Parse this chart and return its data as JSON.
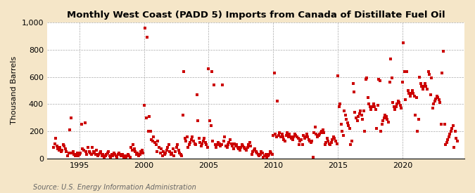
{
  "title": "Monthly West Coast (PADD 5) Imports from Canada of Distillate Fuel Oil",
  "ylabel": "Thousand Barrels",
  "source_text": "Source: U.S. Energy Information Administration",
  "figure_bg": "#f5e6c8",
  "plot_bg": "#ffffff",
  "marker_color": "#cc0000",
  "xlim_start": 1992.5,
  "xlim_end": 2024.8,
  "ylim": [
    0,
    1000
  ],
  "yticks": [
    0,
    200,
    400,
    600,
    800,
    1000
  ],
  "xticks": [
    1995,
    2000,
    2005,
    2010,
    2015,
    2020
  ],
  "data_points": [
    [
      1993.0,
      80
    ],
    [
      1993.08,
      110
    ],
    [
      1993.17,
      150
    ],
    [
      1993.25,
      90
    ],
    [
      1993.33,
      70
    ],
    [
      1993.42,
      60
    ],
    [
      1993.5,
      80
    ],
    [
      1993.58,
      50
    ],
    [
      1993.67,
      60
    ],
    [
      1993.75,
      100
    ],
    [
      1993.83,
      90
    ],
    [
      1993.92,
      70
    ],
    [
      1994.0,
      50
    ],
    [
      1994.08,
      20
    ],
    [
      1994.17,
      40
    ],
    [
      1994.25,
      210
    ],
    [
      1994.33,
      300
    ],
    [
      1994.42,
      40
    ],
    [
      1994.5,
      50
    ],
    [
      1994.58,
      30
    ],
    [
      1994.67,
      20
    ],
    [
      1994.75,
      30
    ],
    [
      1994.83,
      40
    ],
    [
      1994.92,
      20
    ],
    [
      1995.0,
      30
    ],
    [
      1995.08,
      40
    ],
    [
      1995.17,
      250
    ],
    [
      1995.25,
      70
    ],
    [
      1995.33,
      60
    ],
    [
      1995.42,
      260
    ],
    [
      1995.5,
      50
    ],
    [
      1995.58,
      30
    ],
    [
      1995.67,
      80
    ],
    [
      1995.75,
      50
    ],
    [
      1995.83,
      40
    ],
    [
      1995.92,
      30
    ],
    [
      1996.0,
      80
    ],
    [
      1996.08,
      50
    ],
    [
      1996.17,
      40
    ],
    [
      1996.25,
      30
    ],
    [
      1996.33,
      60
    ],
    [
      1996.42,
      20
    ],
    [
      1996.5,
      30
    ],
    [
      1996.58,
      40
    ],
    [
      1996.67,
      50
    ],
    [
      1996.75,
      20
    ],
    [
      1996.83,
      30
    ],
    [
      1996.92,
      10
    ],
    [
      1997.0,
      20
    ],
    [
      1997.08,
      30
    ],
    [
      1997.17,
      40
    ],
    [
      1997.25,
      50
    ],
    [
      1997.33,
      20
    ],
    [
      1997.42,
      10
    ],
    [
      1997.5,
      30
    ],
    [
      1997.58,
      20
    ],
    [
      1997.67,
      40
    ],
    [
      1997.75,
      30
    ],
    [
      1997.83,
      20
    ],
    [
      1997.92,
      10
    ],
    [
      1998.0,
      30
    ],
    [
      1998.08,
      40
    ],
    [
      1998.17,
      30
    ],
    [
      1998.25,
      20
    ],
    [
      1998.33,
      30
    ],
    [
      1998.42,
      10
    ],
    [
      1998.5,
      20
    ],
    [
      1998.58,
      10
    ],
    [
      1998.67,
      20
    ],
    [
      1998.75,
      30
    ],
    [
      1998.83,
      20
    ],
    [
      1998.92,
      10
    ],
    [
      1999.0,
      80
    ],
    [
      1999.08,
      60
    ],
    [
      1999.17,
      100
    ],
    [
      1999.25,
      70
    ],
    [
      1999.33,
      50
    ],
    [
      1999.42,
      30
    ],
    [
      1999.5,
      40
    ],
    [
      1999.58,
      20
    ],
    [
      1999.67,
      30
    ],
    [
      1999.75,
      50
    ],
    [
      1999.83,
      60
    ],
    [
      1999.92,
      40
    ],
    [
      2000.0,
      390
    ],
    [
      2000.08,
      960
    ],
    [
      2000.17,
      300
    ],
    [
      2000.25,
      890
    ],
    [
      2000.33,
      200
    ],
    [
      2000.42,
      310
    ],
    [
      2000.5,
      200
    ],
    [
      2000.58,
      140
    ],
    [
      2000.67,
      130
    ],
    [
      2000.75,
      160
    ],
    [
      2000.83,
      120
    ],
    [
      2000.92,
      100
    ],
    [
      2001.0,
      50
    ],
    [
      2001.08,
      130
    ],
    [
      2001.17,
      80
    ],
    [
      2001.25,
      40
    ],
    [
      2001.33,
      70
    ],
    [
      2001.42,
      20
    ],
    [
      2001.5,
      50
    ],
    [
      2001.58,
      30
    ],
    [
      2001.67,
      40
    ],
    [
      2001.75,
      60
    ],
    [
      2001.83,
      80
    ],
    [
      2001.92,
      100
    ],
    [
      2002.0,
      50
    ],
    [
      2002.08,
      30
    ],
    [
      2002.17,
      40
    ],
    [
      2002.25,
      70
    ],
    [
      2002.33,
      20
    ],
    [
      2002.42,
      50
    ],
    [
      2002.5,
      80
    ],
    [
      2002.58,
      100
    ],
    [
      2002.67,
      60
    ],
    [
      2002.75,
      40
    ],
    [
      2002.83,
      30
    ],
    [
      2002.92,
      20
    ],
    [
      2003.0,
      320
    ],
    [
      2003.08,
      640
    ],
    [
      2003.17,
      150
    ],
    [
      2003.25,
      130
    ],
    [
      2003.33,
      160
    ],
    [
      2003.42,
      80
    ],
    [
      2003.5,
      100
    ],
    [
      2003.58,
      120
    ],
    [
      2003.67,
      140
    ],
    [
      2003.75,
      160
    ],
    [
      2003.83,
      130
    ],
    [
      2003.92,
      110
    ],
    [
      2004.0,
      100
    ],
    [
      2004.08,
      470
    ],
    [
      2004.17,
      280
    ],
    [
      2004.25,
      150
    ],
    [
      2004.33,
      120
    ],
    [
      2004.42,
      90
    ],
    [
      2004.5,
      110
    ],
    [
      2004.58,
      130
    ],
    [
      2004.67,
      150
    ],
    [
      2004.75,
      120
    ],
    [
      2004.83,
      100
    ],
    [
      2004.92,
      80
    ],
    [
      2005.0,
      660
    ],
    [
      2005.08,
      280
    ],
    [
      2005.17,
      240
    ],
    [
      2005.25,
      640
    ],
    [
      2005.33,
      130
    ],
    [
      2005.42,
      540
    ],
    [
      2005.5,
      100
    ],
    [
      2005.58,
      80
    ],
    [
      2005.67,
      100
    ],
    [
      2005.75,
      120
    ],
    [
      2005.83,
      110
    ],
    [
      2005.92,
      90
    ],
    [
      2006.0,
      100
    ],
    [
      2006.08,
      540
    ],
    [
      2006.17,
      130
    ],
    [
      2006.25,
      160
    ],
    [
      2006.33,
      90
    ],
    [
      2006.42,
      80
    ],
    [
      2006.5,
      100
    ],
    [
      2006.58,
      120
    ],
    [
      2006.67,
      140
    ],
    [
      2006.75,
      110
    ],
    [
      2006.83,
      90
    ],
    [
      2006.92,
      70
    ],
    [
      2007.0,
      110
    ],
    [
      2007.08,
      90
    ],
    [
      2007.17,
      100
    ],
    [
      2007.25,
      80
    ],
    [
      2007.33,
      70
    ],
    [
      2007.42,
      60
    ],
    [
      2007.5,
      80
    ],
    [
      2007.58,
      100
    ],
    [
      2007.67,
      90
    ],
    [
      2007.75,
      80
    ],
    [
      2007.83,
      70
    ],
    [
      2007.92,
      60
    ],
    [
      2008.0,
      80
    ],
    [
      2008.08,
      100
    ],
    [
      2008.17,
      120
    ],
    [
      2008.25,
      90
    ],
    [
      2008.33,
      30
    ],
    [
      2008.42,
      50
    ],
    [
      2008.5,
      60
    ],
    [
      2008.58,
      70
    ],
    [
      2008.67,
      50
    ],
    [
      2008.75,
      40
    ],
    [
      2008.83,
      30
    ],
    [
      2008.92,
      20
    ],
    [
      2009.0,
      30
    ],
    [
      2009.08,
      50
    ],
    [
      2009.17,
      40
    ],
    [
      2009.25,
      10
    ],
    [
      2009.33,
      20
    ],
    [
      2009.42,
      30
    ],
    [
      2009.5,
      10
    ],
    [
      2009.58,
      20
    ],
    [
      2009.67,
      30
    ],
    [
      2009.75,
      50
    ],
    [
      2009.83,
      40
    ],
    [
      2009.92,
      30
    ],
    [
      2010.0,
      170
    ],
    [
      2010.08,
      630
    ],
    [
      2010.17,
      180
    ],
    [
      2010.25,
      160
    ],
    [
      2010.33,
      420
    ],
    [
      2010.42,
      170
    ],
    [
      2010.5,
      190
    ],
    [
      2010.58,
      160
    ],
    [
      2010.67,
      180
    ],
    [
      2010.75,
      160
    ],
    [
      2010.83,
      140
    ],
    [
      2010.92,
      130
    ],
    [
      2011.0,
      170
    ],
    [
      2011.08,
      190
    ],
    [
      2011.17,
      160
    ],
    [
      2011.25,
      180
    ],
    [
      2011.33,
      160
    ],
    [
      2011.42,
      150
    ],
    [
      2011.5,
      140
    ],
    [
      2011.58,
      160
    ],
    [
      2011.67,
      180
    ],
    [
      2011.75,
      170
    ],
    [
      2011.83,
      160
    ],
    [
      2011.92,
      150
    ],
    [
      2012.0,
      100
    ],
    [
      2012.08,
      130
    ],
    [
      2012.17,
      140
    ],
    [
      2012.25,
      100
    ],
    [
      2012.33,
      170
    ],
    [
      2012.42,
      150
    ],
    [
      2012.5,
      160
    ],
    [
      2012.58,
      180
    ],
    [
      2012.67,
      160
    ],
    [
      2012.75,
      140
    ],
    [
      2012.83,
      130
    ],
    [
      2012.92,
      120
    ],
    [
      2013.0,
      130
    ],
    [
      2013.08,
      10
    ],
    [
      2013.17,
      190
    ],
    [
      2013.25,
      230
    ],
    [
      2013.33,
      180
    ],
    [
      2013.42,
      160
    ],
    [
      2013.5,
      170
    ],
    [
      2013.58,
      180
    ],
    [
      2013.67,
      190
    ],
    [
      2013.75,
      200
    ],
    [
      2013.83,
      210
    ],
    [
      2013.92,
      190
    ],
    [
      2014.0,
      100
    ],
    [
      2014.08,
      120
    ],
    [
      2014.17,
      150
    ],
    [
      2014.25,
      130
    ],
    [
      2014.33,
      110
    ],
    [
      2014.42,
      100
    ],
    [
      2014.5,
      120
    ],
    [
      2014.58,
      140
    ],
    [
      2014.67,
      160
    ],
    [
      2014.75,
      150
    ],
    [
      2014.83,
      130
    ],
    [
      2014.92,
      110
    ],
    [
      2015.0,
      610
    ],
    [
      2015.08,
      380
    ],
    [
      2015.17,
      400
    ],
    [
      2015.25,
      250
    ],
    [
      2015.33,
      200
    ],
    [
      2015.42,
      170
    ],
    [
      2015.5,
      350
    ],
    [
      2015.58,
      320
    ],
    [
      2015.67,
      290
    ],
    [
      2015.75,
      260
    ],
    [
      2015.83,
      240
    ],
    [
      2015.92,
      220
    ],
    [
      2016.0,
      100
    ],
    [
      2016.08,
      130
    ],
    [
      2016.17,
      550
    ],
    [
      2016.25,
      490
    ],
    [
      2016.33,
      340
    ],
    [
      2016.42,
      300
    ],
    [
      2016.5,
      280
    ],
    [
      2016.58,
      310
    ],
    [
      2016.67,
      330
    ],
    [
      2016.75,
      350
    ],
    [
      2016.83,
      320
    ],
    [
      2016.92,
      290
    ],
    [
      2017.0,
      350
    ],
    [
      2017.08,
      200
    ],
    [
      2017.17,
      580
    ],
    [
      2017.25,
      590
    ],
    [
      2017.33,
      450
    ],
    [
      2017.42,
      400
    ],
    [
      2017.5,
      380
    ],
    [
      2017.58,
      360
    ],
    [
      2017.67,
      380
    ],
    [
      2017.75,
      400
    ],
    [
      2017.83,
      380
    ],
    [
      2017.92,
      360
    ],
    [
      2018.0,
      220
    ],
    [
      2018.08,
      390
    ],
    [
      2018.17,
      580
    ],
    [
      2018.25,
      570
    ],
    [
      2018.33,
      200
    ],
    [
      2018.42,
      250
    ],
    [
      2018.5,
      280
    ],
    [
      2018.58,
      300
    ],
    [
      2018.67,
      320
    ],
    [
      2018.75,
      310
    ],
    [
      2018.83,
      290
    ],
    [
      2018.92,
      270
    ],
    [
      2019.0,
      560
    ],
    [
      2019.08,
      730
    ],
    [
      2019.17,
      590
    ],
    [
      2019.25,
      410
    ],
    [
      2019.33,
      380
    ],
    [
      2019.42,
      360
    ],
    [
      2019.5,
      380
    ],
    [
      2019.58,
      400
    ],
    [
      2019.67,
      420
    ],
    [
      2019.75,
      410
    ],
    [
      2019.83,
      390
    ],
    [
      2019.92,
      370
    ],
    [
      2020.0,
      560
    ],
    [
      2020.08,
      850
    ],
    [
      2020.17,
      640
    ],
    [
      2020.25,
      430
    ],
    [
      2020.33,
      640
    ],
    [
      2020.42,
      500
    ],
    [
      2020.5,
      480
    ],
    [
      2020.58,
      460
    ],
    [
      2020.67,
      480
    ],
    [
      2020.75,
      500
    ],
    [
      2020.83,
      480
    ],
    [
      2020.92,
      460
    ],
    [
      2021.0,
      320
    ],
    [
      2021.08,
      450
    ],
    [
      2021.17,
      200
    ],
    [
      2021.25,
      290
    ],
    [
      2021.33,
      600
    ],
    [
      2021.42,
      550
    ],
    [
      2021.5,
      530
    ],
    [
      2021.58,
      510
    ],
    [
      2021.67,
      530
    ],
    [
      2021.75,
      550
    ],
    [
      2021.83,
      530
    ],
    [
      2021.92,
      510
    ],
    [
      2022.0,
      640
    ],
    [
      2022.08,
      620
    ],
    [
      2022.17,
      470
    ],
    [
      2022.25,
      590
    ],
    [
      2022.33,
      370
    ],
    [
      2022.42,
      400
    ],
    [
      2022.5,
      420
    ],
    [
      2022.58,
      440
    ],
    [
      2022.67,
      460
    ],
    [
      2022.75,
      450
    ],
    [
      2022.83,
      430
    ],
    [
      2022.92,
      410
    ],
    [
      2023.0,
      250
    ],
    [
      2023.08,
      630
    ],
    [
      2023.17,
      790
    ],
    [
      2023.25,
      250
    ],
    [
      2023.33,
      100
    ],
    [
      2023.42,
      120
    ],
    [
      2023.5,
      140
    ],
    [
      2023.58,
      160
    ],
    [
      2023.67,
      180
    ],
    [
      2023.75,
      200
    ],
    [
      2023.83,
      220
    ],
    [
      2023.92,
      240
    ],
    [
      2024.0,
      80
    ],
    [
      2024.08,
      200
    ],
    [
      2024.17,
      150
    ],
    [
      2024.25,
      130
    ]
  ]
}
